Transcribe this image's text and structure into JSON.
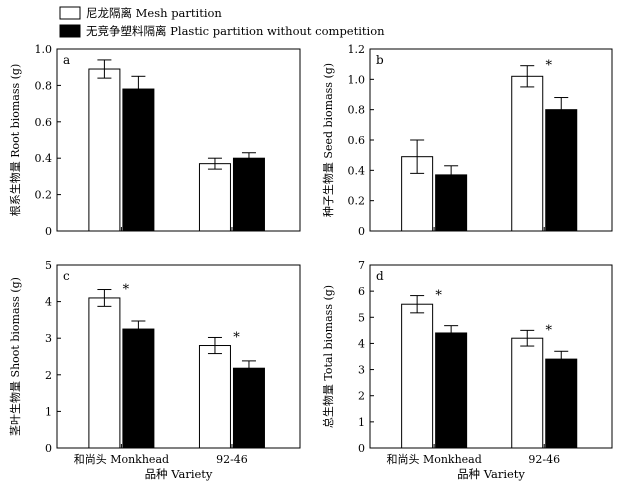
{
  "legend": [
    {
      "label": "尼龙隔离 Mesh partition",
      "color": "#ffffff"
    },
    {
      "label": "无竞争塑料隔离 Plastic partition without competition",
      "color": "#000000"
    }
  ],
  "chart_data": [
    {
      "type": "bar",
      "panel": "a",
      "categories": [
        "和尚头 Monkhead",
        "92-46"
      ],
      "series": [
        {
          "name": "尼龙隔离 Mesh partition",
          "values": [
            0.89,
            0.37
          ],
          "errors": [
            0.05,
            0.03
          ]
        },
        {
          "name": "无竞争塑料隔离 Plastic partition without competition",
          "values": [
            0.78,
            0.4
          ],
          "errors": [
            0.07,
            0.03
          ]
        }
      ],
      "ylabel": "根系生物量 Root biomass (g)",
      "xlabel": "",
      "ylim": [
        0,
        1.0
      ],
      "yticks": [
        "0",
        "0.2",
        "0.4",
        "0.6",
        "0.8",
        "1.0"
      ],
      "significance": [
        [
          false,
          false
        ],
        [
          false,
          false
        ]
      ]
    },
    {
      "type": "bar",
      "panel": "b",
      "categories": [
        "和尚头 Monkhead",
        "92-46"
      ],
      "series": [
        {
          "name": "尼龙隔离 Mesh partition",
          "values": [
            0.49,
            1.02
          ],
          "errors": [
            0.11,
            0.07
          ]
        },
        {
          "name": "无竞争塑料隔离 Plastic partition without competition",
          "values": [
            0.37,
            0.8
          ],
          "errors": [
            0.06,
            0.08
          ]
        }
      ],
      "ylabel": "种子生物量 Seed biomass (g)",
      "xlabel": "",
      "ylim": [
        0,
        1.2
      ],
      "yticks": [
        "0",
        "0.2",
        "0.4",
        "0.6",
        "0.8",
        "1.0",
        "1.2"
      ],
      "significance": [
        [
          false,
          true
        ],
        [
          false,
          false
        ]
      ]
    },
    {
      "type": "bar",
      "panel": "c",
      "categories": [
        "和尚头 Monkhead",
        "92-46"
      ],
      "series": [
        {
          "name": "尼龙隔离 Mesh partition",
          "values": [
            4.1,
            2.8
          ],
          "errors": [
            0.23,
            0.22
          ]
        },
        {
          "name": "无竞争塑料隔离 Plastic partition without competition",
          "values": [
            3.25,
            2.18
          ],
          "errors": [
            0.22,
            0.2
          ]
        }
      ],
      "ylabel": "茎叶生物量 Shoot biomass (g)",
      "xlabel": "品种 Variety",
      "ylim": [
        0,
        5
      ],
      "yticks": [
        "0",
        "1",
        "2",
        "3",
        "4",
        "5"
      ],
      "significance": [
        [
          true,
          true
        ],
        [
          false,
          false
        ]
      ]
    },
    {
      "type": "bar",
      "panel": "d",
      "categories": [
        "和尚头 Monkhead",
        "92-46"
      ],
      "series": [
        {
          "name": "尼龙隔离 Mesh partition",
          "values": [
            5.5,
            4.2
          ],
          "errors": [
            0.33,
            0.3
          ]
        },
        {
          "name": "无竞争塑料隔离 Plastic partition without competition",
          "values": [
            4.4,
            3.4
          ],
          "errors": [
            0.28,
            0.3
          ]
        }
      ],
      "ylabel": "总生物量 Total biomass (g)",
      "xlabel": "品种 Variety",
      "ylim": [
        0,
        7
      ],
      "yticks": [
        "0",
        "1",
        "2",
        "3",
        "4",
        "5",
        "6",
        "7"
      ],
      "significance": [
        [
          true,
          true
        ],
        [
          false,
          false
        ]
      ]
    }
  ]
}
